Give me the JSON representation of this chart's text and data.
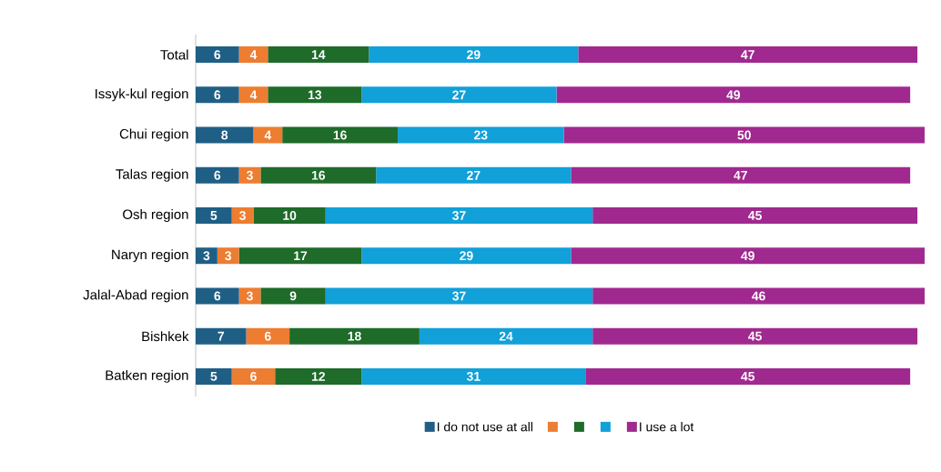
{
  "chart_data": {
    "type": "bar",
    "orientation": "horizontal",
    "stacked": true,
    "data_labels": true,
    "legend": "bottom",
    "tick_labels": "y",
    "categories": [
      "Total",
      "Issyk-kul region",
      "Chui region",
      "Talas region",
      "Osh region",
      "Naryn region",
      "Jalal-Abad region",
      "Bishkek",
      "Batken region"
    ],
    "series": [
      {
        "name": "I do not use at all",
        "color": "#1f5f86",
        "values": [
          6,
          6,
          8,
          6,
          5,
          3,
          6,
          7,
          5
        ]
      },
      {
        "color": "#ed7d31",
        "values": [
          4,
          4,
          4,
          3,
          3,
          3,
          3,
          6,
          6
        ]
      },
      {
        "color": "#1e6b2a",
        "values": [
          14,
          13,
          16,
          16,
          10,
          17,
          9,
          18,
          12
        ]
      },
      {
        "color": "#11a0d8",
        "values": [
          29,
          27,
          23,
          27,
          37,
          29,
          37,
          24,
          31
        ]
      },
      {
        "name": "I use a lot",
        "color": "#a0298f",
        "values": [
          47,
          49,
          50,
          47,
          45,
          49,
          46,
          45,
          45
        ]
      }
    ]
  }
}
